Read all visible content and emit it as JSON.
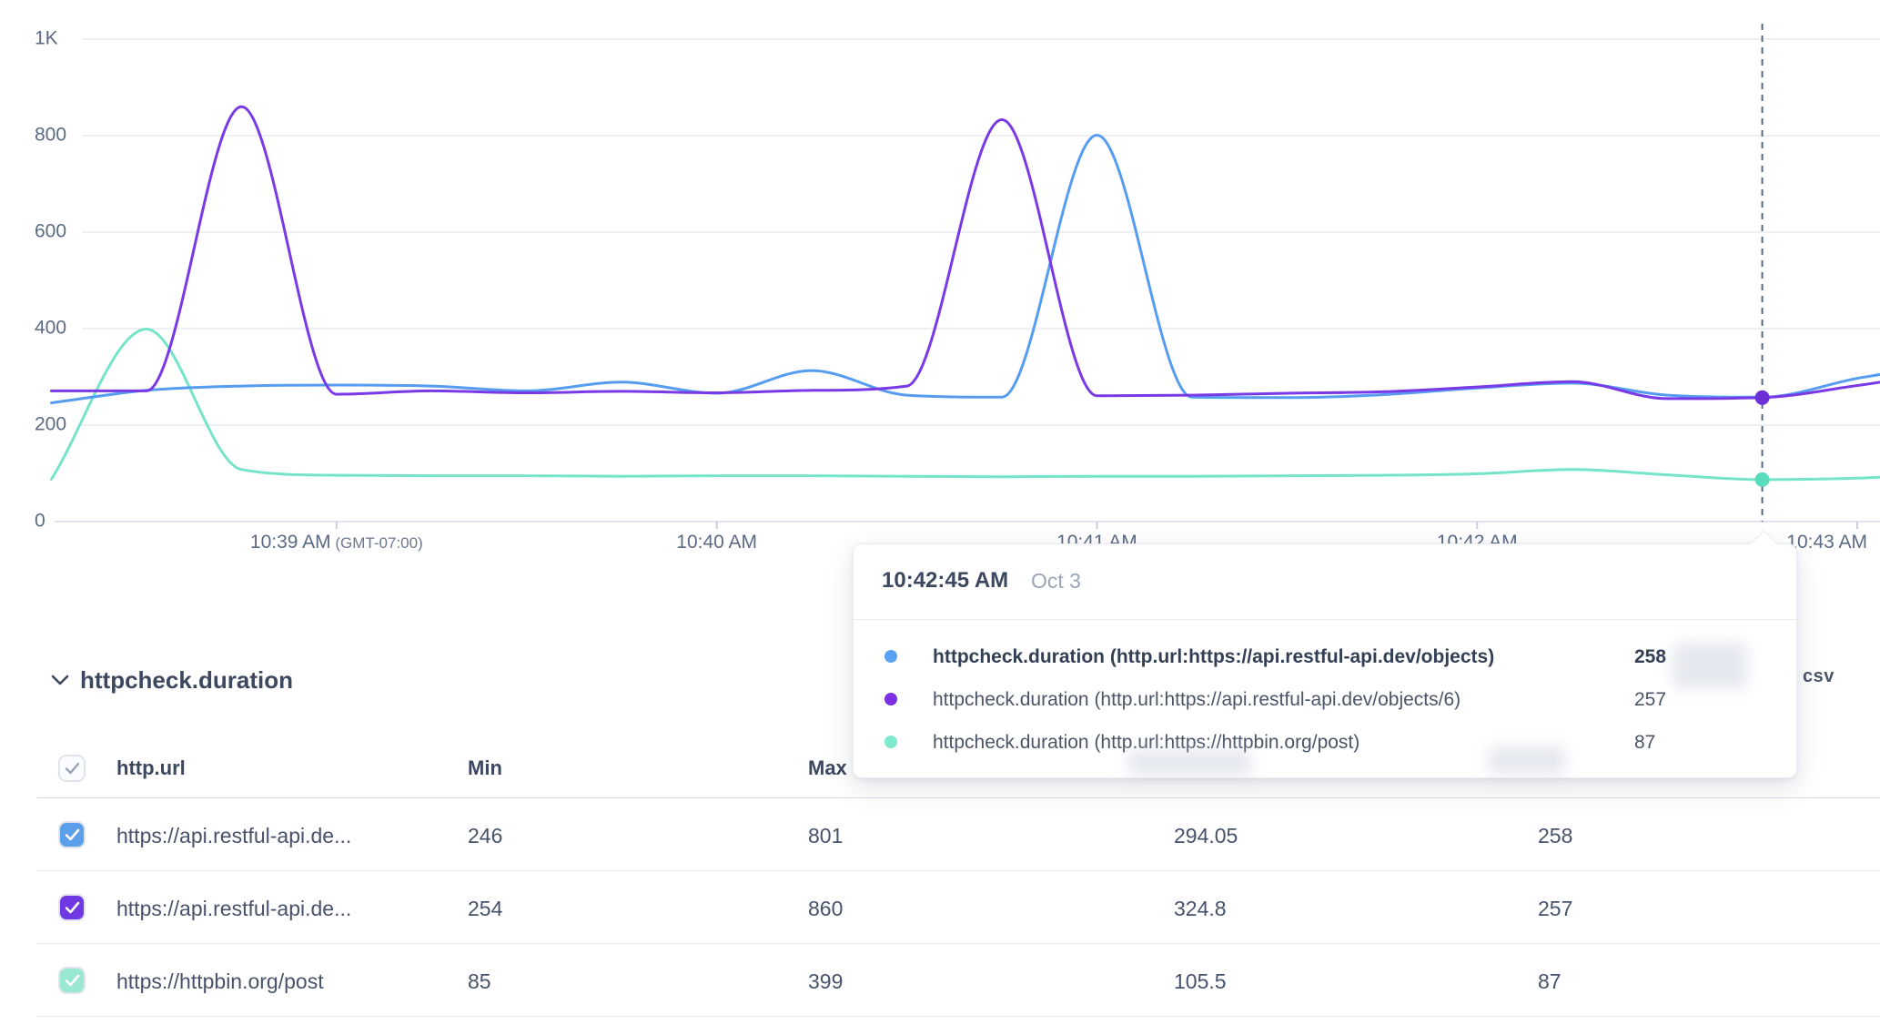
{
  "chart_data": {
    "type": "line",
    "title": "httpcheck.duration",
    "x_axis": {
      "tick_labels": [
        "10:39 AM",
        "10:40 AM",
        "10:41 AM",
        "10:42 AM",
        "10:43 AM"
      ],
      "first_tick_suffix": "(GMT-07:00)",
      "tick_t": [
        3,
        7,
        11,
        15,
        19
      ],
      "start_time": "10:38:15 AM",
      "interval_seconds": 15
    },
    "y_axis": {
      "tick_labels": [
        "1K",
        "800",
        "600",
        "400",
        "200",
        "0"
      ],
      "tick_values": [
        1000,
        800,
        600,
        400,
        200,
        0
      ],
      "min": 0,
      "max": 1000
    },
    "grid_color": "#E9ECF1",
    "baseline_color": "#DFE3EB",
    "t": [
      0,
      1,
      2,
      3,
      4,
      5,
      6,
      7,
      8,
      9,
      10,
      11,
      12,
      13,
      14,
      15,
      16,
      17,
      18,
      19,
      19.24
    ],
    "series": [
      {
        "name": "httpcheck.duration (http.url:https://api.restful-api.dev/objects)",
        "color": "#569CF0",
        "values": [
          246,
          272,
          281,
          283,
          281,
          271,
          289,
          266,
          313,
          262,
          258,
          801,
          258,
          257,
          263,
          277,
          287,
          262,
          258,
          297,
          305
        ]
      },
      {
        "name": "httpcheck.duration (http.url:https://api.restful-api.dev/objects/6)",
        "color": "#7A39E6",
        "values": [
          271,
          271,
          860,
          264,
          271,
          267,
          270,
          267,
          272,
          281,
          833,
          261,
          262,
          266,
          269,
          279,
          290,
          255,
          257,
          282,
          289
        ]
      },
      {
        "name": "httpcheck.duration (http.url:https://httpbin.org/post)",
        "color": "#76E4C8",
        "values": [
          88,
          399,
          108,
          96,
          95,
          95,
          94,
          95,
          95,
          94,
          93,
          94,
          94,
          95,
          96,
          99,
          108,
          97,
          87,
          90,
          92
        ]
      }
    ],
    "cursor": {
      "t": 18,
      "time_label": "10:42:45 AM",
      "line_color": "#5A6880",
      "dots": [
        {
          "series": 1,
          "value": 257,
          "color": "#6D2FD6"
        },
        {
          "series": 2,
          "value": 87,
          "color": "#59DCBE"
        }
      ]
    }
  },
  "tooltip": {
    "time": "10:42:45 AM",
    "date": "Oct 3",
    "rows": [
      {
        "color": "#59A1F2",
        "label": "httpcheck.duration (http.url:https://api.restful-api.dev/objects)",
        "value": "258"
      },
      {
        "color": "#7C2FE3",
        "label": "httpcheck.duration (http.url:https://api.restful-api.dev/objects/6)",
        "value": "257"
      },
      {
        "color": "#7FE9CE",
        "label": "httpcheck.duration (http.url:https://httpbin.org/post)",
        "value": "87"
      }
    ]
  },
  "section": {
    "title": "httpcheck.duration",
    "export_label": "csv"
  },
  "table": {
    "headers": {
      "url": "http.url",
      "min": "Min",
      "max": "Max"
    },
    "rows": [
      {
        "checkbox_color": "#5B9EE9",
        "url": "https://api.restful-api.de...",
        "min": "246",
        "max": "801",
        "avg": "294.05",
        "latest": "258"
      },
      {
        "checkbox_color": "#7038E2",
        "url": "https://api.restful-api.de...",
        "min": "254",
        "max": "860",
        "avg": "324.8",
        "latest": "257"
      },
      {
        "checkbox_color": "#99E8D2",
        "url": "https://httpbin.org/post",
        "min": "85",
        "max": "399",
        "avg": "105.5",
        "latest": "87"
      }
    ]
  }
}
